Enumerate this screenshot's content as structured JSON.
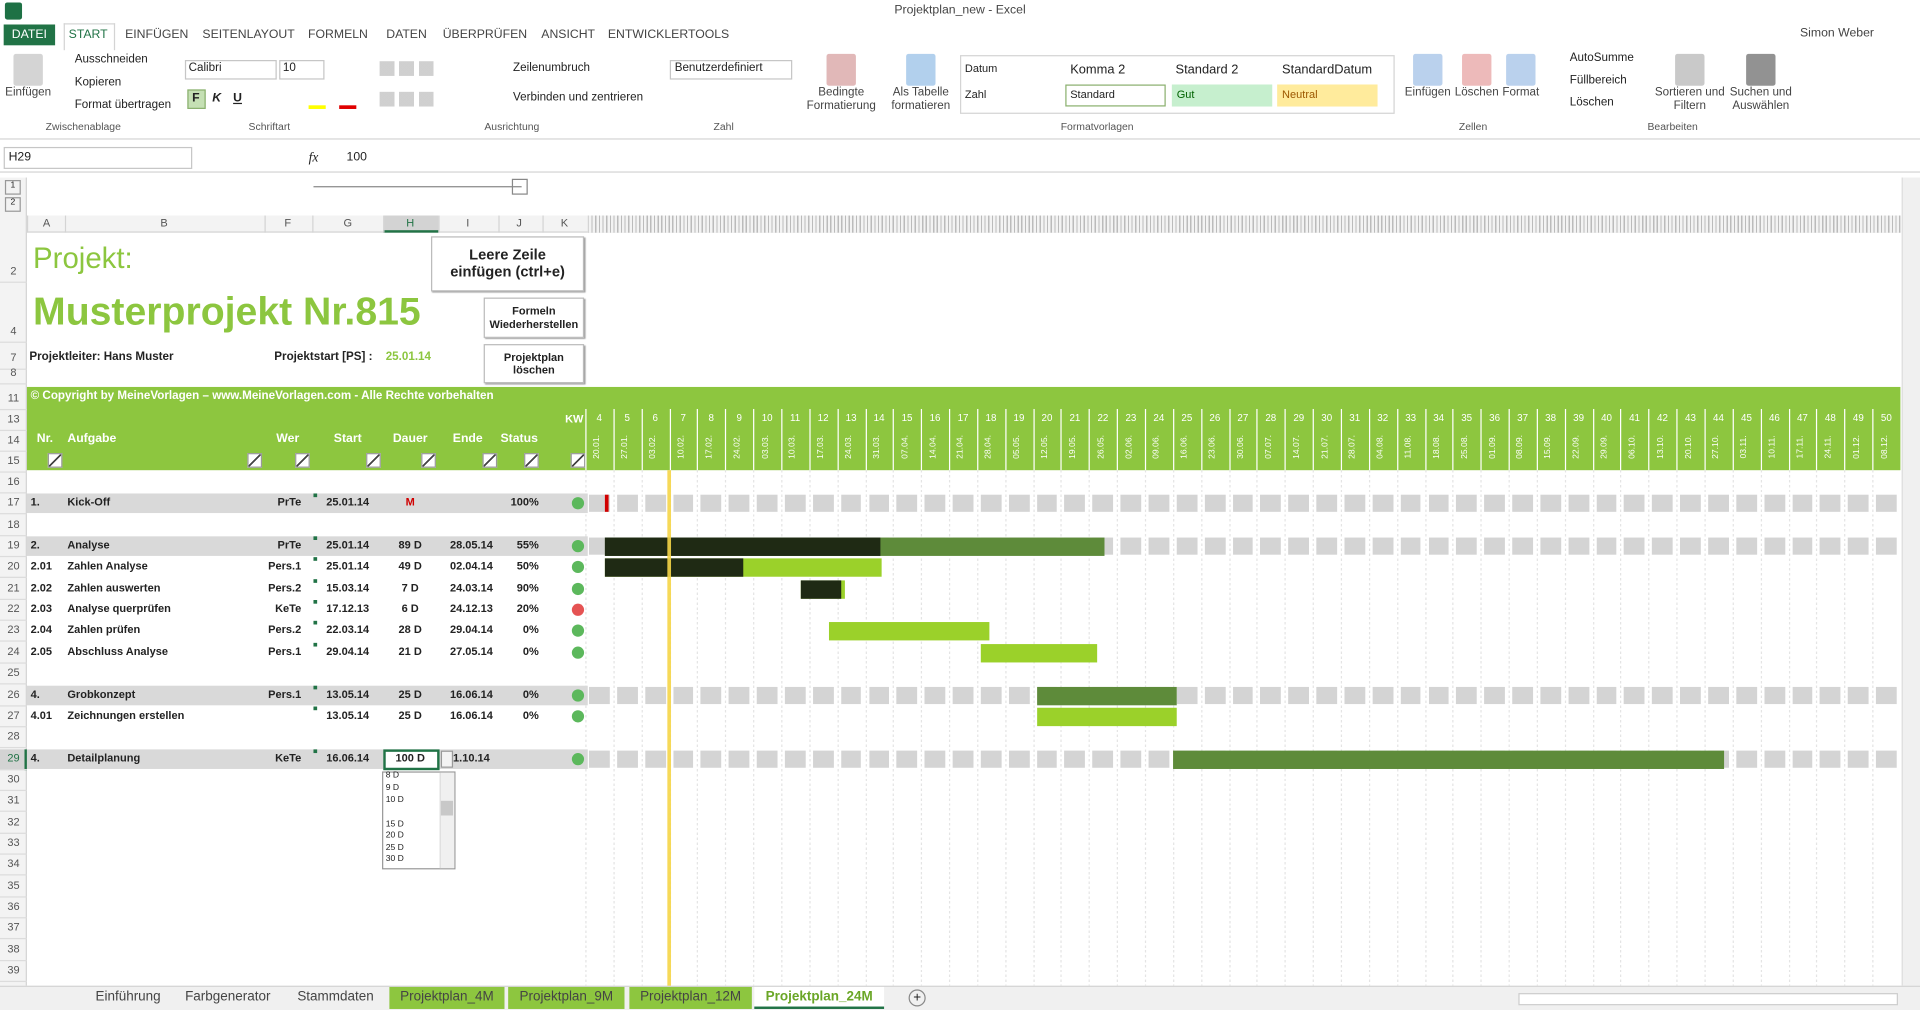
{
  "title_bar": {
    "title": "Projektplan_new - Excel",
    "user": "Simon Weber"
  },
  "ribbon": {
    "tabs": [
      "DATEI",
      "START",
      "EINFÜGEN",
      "SEITENLAYOUT",
      "FORMELN",
      "DATEN",
      "ÜBERPRÜFEN",
      "ANSICHT",
      "ENTWICKLERTOOLS"
    ],
    "clipboard": {
      "label": "Zwischenablage",
      "paste": "Einfügen",
      "cut": "Ausschneiden",
      "copy": "Kopieren",
      "format_painter": "Format übertragen"
    },
    "font": {
      "label": "Schriftart",
      "font_name": "Calibri",
      "font_size": "10",
      "bold": "F",
      "italic": "K",
      "underline": "U"
    },
    "alignment": {
      "label": "Ausrichtung",
      "wrap": "Zeilenumbruch",
      "merge": "Verbinden und zentrieren"
    },
    "number": {
      "label": "Zahl",
      "format": "Benutzerdefiniert"
    },
    "styles": {
      "label": "Formatvorlagen",
      "conditional": "Bedingte Formatierung",
      "as_table": "Als Tabelle formatieren",
      "gallery": [
        "Datum",
        "Komma 2",
        "Standard 2",
        "StandardDatum",
        "Zahl",
        "Standard",
        "Gut",
        "Neutral"
      ]
    },
    "cells": {
      "label": "Zellen",
      "insert": "Einfügen",
      "delete": "Löschen",
      "format": "Format"
    },
    "editing": {
      "label": "Bearbeiten",
      "autosum": "AutoSumme",
      "fill": "Füllbereich",
      "clear": "Löschen",
      "sort": "Sortieren und Filtern",
      "find": "Suchen und Auswählen"
    }
  },
  "formula_bar": {
    "name_box": "H29",
    "fx": "fx",
    "content": "100"
  },
  "sheet": {
    "columns": [
      "A",
      "B",
      "F",
      "G",
      "H",
      "I",
      "J",
      "K"
    ],
    "rows": [
      2,
      4,
      7,
      8,
      11,
      13,
      14,
      15,
      16,
      17,
      18,
      19,
      20,
      21,
      22,
      23,
      24,
      25,
      26,
      27,
      28,
      29,
      30,
      31,
      32,
      33,
      34,
      35,
      36,
      37,
      38,
      39
    ],
    "project_label": "Projekt:",
    "project_name": "Musterprojekt Nr.815",
    "manager": "Projektleiter: Hans Muster",
    "start_label": "Projektstart [PS] :",
    "start_date": "25.01.14",
    "buttons": [
      "Leere Zeile einfügen (ctrl+e)",
      "Formeln Wiederherstellen",
      "Projektplan löschen"
    ],
    "copyright": "© Copyright by MeineVorlagen – www.MeineVorlagen.com - Alle Rechte vorbehalten",
    "headers": {
      "nr": "Nr.",
      "task": "Aufgabe",
      "who": "Wer",
      "start": "Start",
      "duration": "Dauer",
      "end": "Ende",
      "status": "Status",
      "kw": "KW"
    },
    "weeks": [
      4,
      5,
      6,
      7,
      8,
      9,
      10,
      11,
      12,
      13,
      14,
      15,
      16,
      17,
      18,
      19,
      20,
      21,
      22,
      23,
      24,
      25,
      26,
      27,
      28,
      29,
      30,
      31,
      32,
      33,
      34,
      35,
      36,
      37,
      38,
      39,
      40,
      41,
      42,
      43,
      44,
      45,
      46,
      47,
      48,
      49,
      50
    ],
    "week_dates": [
      "20.01.",
      "27.01.",
      "03.02.",
      "10.02.",
      "17.02.",
      "24.02.",
      "03.03.",
      "10.03.",
      "17.03.",
      "24.03.",
      "31.03.",
      "07.04.",
      "14.04.",
      "21.04.",
      "28.04.",
      "05.05.",
      "12.05.",
      "19.05.",
      "26.05.",
      "02.06.",
      "09.06.",
      "16.06.",
      "23.06.",
      "30.06.",
      "07.07.",
      "14.07.",
      "21.07.",
      "28.07.",
      "04.08.",
      "11.08.",
      "18.08.",
      "25.08.",
      "01.09.",
      "08.09.",
      "15.09.",
      "22.09.",
      "29.09.",
      "06.10.",
      "13.10.",
      "20.10.",
      "27.10.",
      "03.11.",
      "10.11.",
      "17.11.",
      "24.11.",
      "01.12.",
      "08.12."
    ],
    "tasks": [
      {
        "nr": "1.",
        "task": "Kick-Off",
        "who": "PrTe",
        "start": "25.01.14",
        "duration": "M",
        "end": "",
        "status": "100%",
        "state": "ok",
        "summary": true
      },
      {
        "nr": "2.",
        "task": "Analyse",
        "who": "PrTe",
        "start": "25.01.14",
        "duration": "89 D",
        "end": "28.05.14",
        "status": "55%",
        "state": "ok",
        "summary": true
      },
      {
        "nr": "2.01",
        "task": "Zahlen Analyse",
        "who": "Pers.1",
        "start": "25.01.14",
        "duration": "49 D",
        "end": "02.04.14",
        "status": "50%",
        "state": "ok",
        "summary": false
      },
      {
        "nr": "2.02",
        "task": "Zahlen auswerten",
        "who": "Pers.2",
        "start": "15.03.14",
        "duration": "7 D",
        "end": "24.03.14",
        "status": "90%",
        "state": "ok",
        "summary": false
      },
      {
        "nr": "2.03",
        "task": "Analyse querprüfen",
        "who": "KeTe",
        "start": "17.12.13",
        "duration": "6 D",
        "end": "24.12.13",
        "status": "20%",
        "state": "error",
        "summary": false
      },
      {
        "nr": "2.04",
        "task": "Zahlen prüfen",
        "who": "Pers.2",
        "start": "22.03.14",
        "duration": "28 D",
        "end": "29.04.14",
        "status": "0%",
        "state": "ok",
        "summary": false
      },
      {
        "nr": "2.05",
        "task": "Abschluss Analyse",
        "who": "Pers.1",
        "start": "29.04.14",
        "duration": "21 D",
        "end": "27.05.14",
        "status": "0%",
        "state": "ok",
        "summary": false
      },
      {
        "nr": "4.",
        "task": "Grobkonzept",
        "who": "Pers.1",
        "start": "13.05.14",
        "duration": "25 D",
        "end": "16.06.14",
        "status": "0%",
        "state": "ok",
        "summary": true
      },
      {
        "nr": "4.01",
        "task": "Zeichnungen erstellen",
        "who": "",
        "start": "13.05.14",
        "duration": "25 D",
        "end": "16.06.14",
        "status": "0%",
        "state": "ok",
        "summary": false
      },
      {
        "nr": "4.",
        "task": "Detailplanung",
        "who": "KeTe",
        "start": "16.06.14",
        "duration": "100 D",
        "end": "1.10.14",
        "status": "",
        "state": "ok",
        "summary": true
      }
    ],
    "dropdown": [
      "8 D",
      "9 D",
      "10 D",
      "15 D",
      "20 D",
      "25 D",
      "30 D"
    ]
  },
  "sheet_tabs": [
    "Einführung",
    "Farbgenerator",
    "Stammdaten",
    "Projektplan_4M",
    "Projektplan_9M",
    "Projektplan_12M",
    "Projektplan_24M"
  ]
}
